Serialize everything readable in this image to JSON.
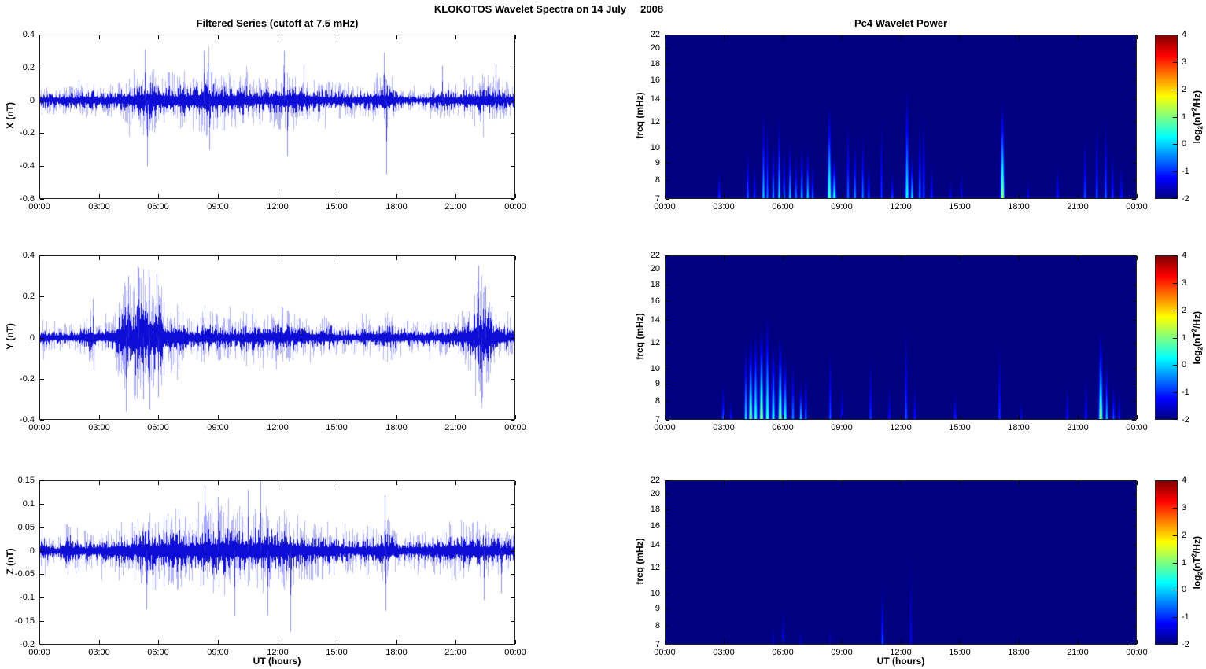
{
  "figure": {
    "title": "KLOKOTOS Wavelet Spectra on 14 July     2008"
  },
  "chart_data": [
    {
      "id": "x-filtered-series",
      "type": "line",
      "title": "Filtered Series (cutoff at 7.5 mHz)",
      "ylabel": "X (nT)",
      "xlabel": "",
      "ylim": [
        -0.6,
        0.4
      ],
      "yticks": [
        "0.4",
        "0.2",
        "0",
        "-0.2",
        "-0.4",
        "-0.6"
      ],
      "xlim_hours": [
        0,
        24
      ],
      "xticks": [
        "00:00",
        "03:00",
        "06:00",
        "09:00",
        "12:00",
        "15:00",
        "18:00",
        "21:00",
        "00:00"
      ],
      "line_color": "#0d0dd6",
      "seed": 7,
      "envelope": [
        [
          0,
          0.07
        ],
        [
          1,
          0.06
        ],
        [
          2,
          0.075
        ],
        [
          2.6,
          0.09
        ],
        [
          3,
          0.07
        ],
        [
          3.6,
          0.08
        ],
        [
          4,
          0.09
        ],
        [
          4.5,
          0.12
        ],
        [
          5,
          0.16
        ],
        [
          5.5,
          0.17
        ],
        [
          6,
          0.14
        ],
        [
          6.5,
          0.13
        ],
        [
          7,
          0.13
        ],
        [
          7.5,
          0.15
        ],
        [
          8,
          0.15
        ],
        [
          8.5,
          0.17
        ],
        [
          9,
          0.15
        ],
        [
          9.5,
          0.13
        ],
        [
          10,
          0.12
        ],
        [
          10.5,
          0.13
        ],
        [
          11,
          0.11
        ],
        [
          11.5,
          0.11
        ],
        [
          12,
          0.13
        ],
        [
          12.5,
          0.15
        ],
        [
          13,
          0.12
        ],
        [
          13.5,
          0.11
        ],
        [
          14,
          0.1
        ],
        [
          15,
          0.09
        ],
        [
          16,
          0.08
        ],
        [
          17,
          0.1
        ],
        [
          17.4,
          0.15
        ],
        [
          17.7,
          0.12
        ],
        [
          18,
          0.08
        ],
        [
          18.5,
          0.05
        ],
        [
          19,
          0.05
        ],
        [
          19.5,
          0.06
        ],
        [
          20,
          0.08
        ],
        [
          20.5,
          0.09
        ],
        [
          21,
          0.08
        ],
        [
          21.5,
          0.1
        ],
        [
          22,
          0.12
        ],
        [
          22.5,
          0.12
        ],
        [
          23,
          0.11
        ],
        [
          23.5,
          0.09
        ],
        [
          24,
          0.08
        ]
      ],
      "spikes": [
        [
          5.3,
          0.31
        ],
        [
          5.42,
          -0.4
        ],
        [
          8.3,
          0.3
        ],
        [
          8.55,
          -0.3
        ],
        [
          12.35,
          0.3
        ],
        [
          12.5,
          -0.34
        ],
        [
          17.38,
          0.29
        ],
        [
          17.5,
          -0.45
        ],
        [
          20.3,
          0.21
        ],
        [
          23.0,
          0.22
        ]
      ]
    },
    {
      "id": "x-wavelet-power",
      "type": "heatmap",
      "title": "Pc4 Wavelet Power",
      "ylabel": "freq (mHz)",
      "xlabel": "",
      "yscale": "log",
      "ylim": [
        7,
        22
      ],
      "yticks": [
        "22",
        "20",
        "18",
        "16",
        "14",
        "12",
        "10",
        "9",
        "8",
        "7"
      ],
      "xlim_hours": [
        0,
        24
      ],
      "xticks": [
        "00:00",
        "03:00",
        "06:00",
        "09:00",
        "12:00",
        "15:00",
        "18:00",
        "21:00",
        "00:00"
      ],
      "clim": [
        -2,
        4
      ],
      "colormap": "jet",
      "events": [
        [
          2.75,
          8.5,
          -0.8
        ],
        [
          4.2,
          10,
          -0.5
        ],
        [
          4.55,
          9,
          -0.9
        ],
        [
          5.0,
          13,
          0.2
        ],
        [
          5.2,
          12,
          -0.4
        ],
        [
          5.5,
          10.5,
          -0.2
        ],
        [
          5.8,
          12.5,
          0.3
        ],
        [
          6.05,
          10,
          -0.4
        ],
        [
          6.35,
          10.5,
          0.2
        ],
        [
          6.65,
          9.5,
          -0.3
        ],
        [
          6.95,
          10.2,
          0.1
        ],
        [
          7.25,
          10,
          0.3
        ],
        [
          7.5,
          9,
          -0.5
        ],
        [
          8.35,
          13.5,
          1.1
        ],
        [
          8.6,
          9.5,
          0.6
        ],
        [
          9.3,
          12,
          -0.4
        ],
        [
          9.65,
          10.5,
          -0.2
        ],
        [
          10.05,
          11,
          -0.3
        ],
        [
          10.35,
          9,
          -0.6
        ],
        [
          11.0,
          12.5,
          -0.8
        ],
        [
          11.55,
          8.5,
          -0.7
        ],
        [
          12.3,
          15,
          0.5
        ],
        [
          12.55,
          9.5,
          0.3
        ],
        [
          12.95,
          12,
          -0.3
        ],
        [
          13.15,
          13,
          -0.7
        ],
        [
          13.55,
          9,
          -0.9
        ],
        [
          14.5,
          8,
          -1.2
        ],
        [
          15.05,
          8.5,
          -1.1
        ],
        [
          17.15,
          13.8,
          1.6
        ],
        [
          18.45,
          8,
          -1.3
        ],
        [
          19.95,
          9,
          -1.0
        ],
        [
          21.35,
          11,
          -0.6
        ],
        [
          21.95,
          12,
          -0.6
        ],
        [
          22.4,
          12.5,
          -0.5
        ],
        [
          22.75,
          10,
          -0.8
        ],
        [
          23.2,
          9,
          -1.0
        ]
      ]
    },
    {
      "id": "y-filtered-series",
      "type": "line",
      "title": "",
      "ylabel": "Y (nT)",
      "xlabel": "",
      "ylim": [
        -0.4,
        0.4
      ],
      "yticks": [
        "0.4",
        "0.2",
        "0",
        "-0.2",
        "-0.4"
      ],
      "xlim_hours": [
        0,
        24
      ],
      "xticks": [
        "00:00",
        "03:00",
        "06:00",
        "09:00",
        "12:00",
        "15:00",
        "18:00",
        "21:00",
        "00:00"
      ],
      "line_color": "#0d0dd6",
      "seed": 13,
      "envelope": [
        [
          0,
          0.05
        ],
        [
          0.15,
          0.1
        ],
        [
          0.4,
          0.05
        ],
        [
          1,
          0.05
        ],
        [
          1.5,
          0.05
        ],
        [
          2,
          0.06
        ],
        [
          2.6,
          0.11
        ],
        [
          2.8,
          0.07
        ],
        [
          3,
          0.06
        ],
        [
          3.5,
          0.08
        ],
        [
          3.9,
          0.12
        ],
        [
          4.2,
          0.22
        ],
        [
          4.5,
          0.2
        ],
        [
          4.8,
          0.26
        ],
        [
          5.1,
          0.28
        ],
        [
          5.4,
          0.24
        ],
        [
          5.7,
          0.22
        ],
        [
          6,
          0.26
        ],
        [
          6.2,
          0.16
        ],
        [
          6.5,
          0.12
        ],
        [
          6.8,
          0.14
        ],
        [
          7.1,
          0.12
        ],
        [
          7.5,
          0.09
        ],
        [
          8,
          0.08
        ],
        [
          8.5,
          0.11
        ],
        [
          9,
          0.09
        ],
        [
          9.5,
          0.08
        ],
        [
          10,
          0.08
        ],
        [
          10.5,
          0.11
        ],
        [
          11,
          0.08
        ],
        [
          11.5,
          0.08
        ],
        [
          12,
          0.1
        ],
        [
          12.3,
          0.12
        ],
        [
          12.7,
          0.09
        ],
        [
          13,
          0.08
        ],
        [
          13.5,
          0.07
        ],
        [
          14,
          0.07
        ],
        [
          14.7,
          0.09
        ],
        [
          15,
          0.06
        ],
        [
          16,
          0.06
        ],
        [
          17,
          0.08
        ],
        [
          17.5,
          0.1
        ],
        [
          18,
          0.07
        ],
        [
          19,
          0.06
        ],
        [
          20,
          0.07
        ],
        [
          21,
          0.08
        ],
        [
          21.6,
          0.12
        ],
        [
          22,
          0.22
        ],
        [
          22.3,
          0.26
        ],
        [
          22.6,
          0.18
        ],
        [
          23,
          0.12
        ],
        [
          23.4,
          0.09
        ],
        [
          24,
          0.06
        ]
      ],
      "spikes": [
        [
          2.7,
          0.19
        ],
        [
          2.75,
          -0.16
        ],
        [
          4.35,
          -0.36
        ],
        [
          4.5,
          0.3
        ],
        [
          5.0,
          0.34
        ],
        [
          5.25,
          -0.3
        ],
        [
          5.5,
          0.33
        ],
        [
          5.55,
          -0.35
        ],
        [
          5.9,
          0.31
        ],
        [
          6.0,
          -0.29
        ],
        [
          12.2,
          0.15
        ],
        [
          22.15,
          0.35
        ],
        [
          22.3,
          -0.31
        ],
        [
          22.5,
          0.25
        ]
      ]
    },
    {
      "id": "y-wavelet-power",
      "type": "heatmap",
      "title": "",
      "ylabel": "freq (mHz)",
      "xlabel": "",
      "yscale": "log",
      "ylim": [
        7,
        22
      ],
      "yticks": [
        "22",
        "20",
        "18",
        "16",
        "14",
        "12",
        "10",
        "9",
        "8",
        "7"
      ],
      "xlim_hours": [
        0,
        24
      ],
      "xticks": [
        "00:00",
        "03:00",
        "06:00",
        "09:00",
        "12:00",
        "15:00",
        "18:00",
        "21:00",
        "00:00"
      ],
      "clim": [
        -2,
        4
      ],
      "colormap": "jet",
      "events": [
        [
          2.95,
          9,
          -0.6
        ],
        [
          3.35,
          8,
          -1.0
        ],
        [
          4.1,
          12,
          0.4
        ],
        [
          4.35,
          12.5,
          1.3
        ],
        [
          4.6,
          13,
          0.7
        ],
        [
          4.9,
          13.5,
          1.5
        ],
        [
          5.2,
          14.5,
          0.8
        ],
        [
          5.5,
          12,
          0.5
        ],
        [
          5.85,
          12.5,
          1.4
        ],
        [
          6.1,
          11,
          0.6
        ],
        [
          6.5,
          10.5,
          -0.2
        ],
        [
          6.9,
          9.2,
          0.3
        ],
        [
          7.15,
          9.5,
          -0.4
        ],
        [
          8.4,
          11.5,
          -0.6
        ],
        [
          9.0,
          9,
          -1.0
        ],
        [
          10.45,
          11,
          -0.8
        ],
        [
          11.4,
          9,
          -1.1
        ],
        [
          12.25,
          13.5,
          -0.6
        ],
        [
          12.7,
          9,
          -1.0
        ],
        [
          14.75,
          8.5,
          -0.9
        ],
        [
          17.0,
          12,
          -0.8
        ],
        [
          18.1,
          8,
          -1.2
        ],
        [
          20.45,
          9,
          -1.1
        ],
        [
          21.4,
          9.5,
          -1.0
        ],
        [
          22.15,
          13,
          1.5
        ],
        [
          22.45,
          10.5,
          0.1
        ],
        [
          22.8,
          9,
          -0.6
        ],
        [
          23.1,
          8.5,
          -1.0
        ]
      ]
    },
    {
      "id": "z-filtered-series",
      "type": "line",
      "title": "",
      "ylabel": "Z (nT)",
      "xlabel": "UT (hours)",
      "ylim": [
        -0.2,
        0.15
      ],
      "yticks": [
        "0.15",
        "0.1",
        "0.05",
        "0",
        "-0.05",
        "-0.1",
        "-0.15",
        "-0.2"
      ],
      "xlim_hours": [
        0,
        24
      ],
      "xticks": [
        "00:00",
        "03:00",
        "06:00",
        "09:00",
        "12:00",
        "15:00",
        "18:00",
        "21:00",
        "00:00"
      ],
      "line_color": "#0d0dd6",
      "seed": 29,
      "envelope": [
        [
          0,
          0.022
        ],
        [
          0.15,
          0.05
        ],
        [
          0.5,
          0.022
        ],
        [
          1,
          0.022
        ],
        [
          1.5,
          0.05
        ],
        [
          1.8,
          0.04
        ],
        [
          2,
          0.035
        ],
        [
          2.5,
          0.03
        ],
        [
          3,
          0.032
        ],
        [
          3.5,
          0.035
        ],
        [
          4,
          0.05
        ],
        [
          4.3,
          0.04
        ],
        [
          4.6,
          0.045
        ],
        [
          5,
          0.055
        ],
        [
          5.3,
          0.07
        ],
        [
          5.6,
          0.06
        ],
        [
          6,
          0.065
        ],
        [
          6.5,
          0.06
        ],
        [
          7,
          0.07
        ],
        [
          7.5,
          0.055
        ],
        [
          8,
          0.055
        ],
        [
          8.4,
          0.08
        ],
        [
          8.7,
          0.07
        ],
        [
          9,
          0.07
        ],
        [
          9.3,
          0.075
        ],
        [
          9.7,
          0.065
        ],
        [
          10,
          0.06
        ],
        [
          10.4,
          0.065
        ],
        [
          10.8,
          0.07
        ],
        [
          11.2,
          0.08
        ],
        [
          11.5,
          0.075
        ],
        [
          12,
          0.06
        ],
        [
          12.5,
          0.065
        ],
        [
          13,
          0.05
        ],
        [
          13.5,
          0.05
        ],
        [
          14,
          0.045
        ],
        [
          14.5,
          0.045
        ],
        [
          15,
          0.04
        ],
        [
          15.5,
          0.038
        ],
        [
          16,
          0.035
        ],
        [
          16.5,
          0.04
        ],
        [
          17,
          0.045
        ],
        [
          17.5,
          0.055
        ],
        [
          18,
          0.035
        ],
        [
          18.5,
          0.03
        ],
        [
          19,
          0.03
        ],
        [
          19.5,
          0.035
        ],
        [
          20,
          0.04
        ],
        [
          20.5,
          0.045
        ],
        [
          21,
          0.05
        ],
        [
          21.5,
          0.055
        ],
        [
          22,
          0.05
        ],
        [
          22.5,
          0.048
        ],
        [
          23,
          0.04
        ],
        [
          23.5,
          0.038
        ],
        [
          24,
          0.035
        ]
      ],
      "spikes": [
        [
          5.4,
          -0.125
        ],
        [
          8.35,
          0.138
        ],
        [
          9.0,
          0.115
        ],
        [
          9.85,
          -0.14
        ],
        [
          10.5,
          0.13
        ],
        [
          11.15,
          0.148
        ],
        [
          11.5,
          -0.138
        ],
        [
          12.65,
          -0.172
        ],
        [
          17.4,
          0.118
        ],
        [
          17.45,
          -0.128
        ],
        [
          22.4,
          -0.105
        ],
        [
          23.3,
          -0.09
        ]
      ]
    },
    {
      "id": "z-wavelet-power",
      "type": "heatmap",
      "title": "",
      "ylabel": "freq (mHz)",
      "xlabel": "UT (hours)",
      "yscale": "log",
      "ylim": [
        7,
        22
      ],
      "yticks": [
        "22",
        "20",
        "18",
        "16",
        "14",
        "12",
        "10",
        "9",
        "8",
        "7"
      ],
      "xlim_hours": [
        0,
        24
      ],
      "xticks": [
        "00:00",
        "03:00",
        "06:00",
        "09:00",
        "12:00",
        "15:00",
        "18:00",
        "21:00",
        "00:00"
      ],
      "clim": [
        -2,
        4
      ],
      "colormap": "jet",
      "events": [
        [
          5.5,
          8,
          -1.5
        ],
        [
          6.0,
          9,
          -1.2
        ],
        [
          6.9,
          8,
          -1.5
        ],
        [
          8.4,
          8,
          -1.6
        ],
        [
          11.05,
          10.5,
          -0.6
        ],
        [
          12.5,
          13,
          -1.3
        ]
      ]
    }
  ],
  "colorbar": {
    "range": [
      -2,
      4
    ],
    "ticks": [
      "4",
      "3",
      "2",
      "1",
      "0",
      "-1",
      "-2"
    ],
    "colormap": "jet",
    "label": {
      "l1": "log",
      "sub": "2",
      "l2": "(nT",
      "sup": "2",
      "l3": "/Hz)"
    }
  }
}
